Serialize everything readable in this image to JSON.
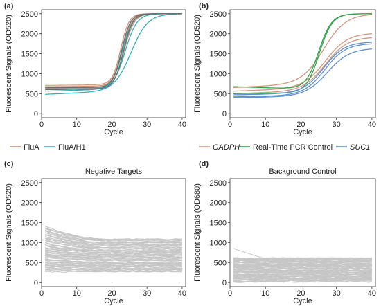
{
  "chart_data": [
    {
      "panel": "(a)",
      "type": "line",
      "title": "",
      "xlabel": "Cycle",
      "ylabel": "Fluorescent Signals (OD520)",
      "xlim": [
        0,
        41
      ],
      "ylim": [
        -100,
        2600
      ],
      "xticks": [
        0,
        10,
        20,
        30,
        40
      ],
      "yticks": [
        0,
        500,
        1000,
        1500,
        2000,
        2500
      ],
      "grid": false,
      "legend_placement": "bottom-left",
      "series": [
        {
          "name": "FluA",
          "color": "#c9917a",
          "plateau": 2500,
          "curves": [
            {
              "base": 740,
              "drift": -40,
              "mid": 22.5,
              "k": 0.85,
              "top": 2500
            },
            {
              "base": 700,
              "drift": -30,
              "mid": 22.8,
              "k": 0.8,
              "top": 2500
            },
            {
              "base": 640,
              "drift": 20,
              "mid": 23.0,
              "k": 0.75,
              "top": 2500
            },
            {
              "base": 620,
              "drift": 30,
              "mid": 23.5,
              "k": 0.7,
              "top": 2500
            }
          ]
        },
        {
          "name": "FluA/H1",
          "color": "#2fb0b8",
          "plateau": 2500,
          "curves": [
            {
              "base": 480,
              "drift": 150,
              "mid": 25.5,
              "k": 0.42,
              "top": 2500
            },
            {
              "base": 560,
              "drift": 100,
              "mid": 23.8,
              "k": 0.6,
              "top": 2500
            },
            {
              "base": 600,
              "drift": 60,
              "mid": 23.0,
              "k": 0.7,
              "top": 2500
            }
          ]
        },
        {
          "name": "",
          "color": "#6b6b6b",
          "plateau": 2500,
          "curves": [
            {
              "base": 650,
              "drift": 20,
              "mid": 22.8,
              "k": 0.8,
              "top": 2500
            },
            {
              "base": 600,
              "drift": 40,
              "mid": 23.3,
              "k": 0.75,
              "top": 2500
            }
          ]
        }
      ]
    },
    {
      "panel": "(b)",
      "type": "line",
      "title": "",
      "xlabel": "Cycle",
      "ylabel": "Fluorescent Signals (OD520)",
      "xlim": [
        0,
        41
      ],
      "ylim": [
        -100,
        2600
      ],
      "xticks": [
        0,
        10,
        20,
        30,
        40
      ],
      "yticks": [
        0,
        500,
        1000,
        1500,
        2000,
        2500
      ],
      "grid": false,
      "legend_placement": "bottom",
      "series": [
        {
          "name": "GADPH",
          "italic": true,
          "color": "#d4957b",
          "curves": [
            {
              "base": 650,
              "drift": 150,
              "mid": 26.5,
              "k": 0.32,
              "top": 2500
            },
            {
              "base": 560,
              "drift": 120,
              "mid": 27.0,
              "k": 0.32,
              "top": 2020
            },
            {
              "base": 500,
              "drift": 100,
              "mid": 27.0,
              "k": 0.32,
              "top": 1920
            }
          ]
        },
        {
          "name": "Real-Time PCR Control",
          "italic": false,
          "color": "#33a14a",
          "plateau": 2500,
          "curves": [
            {
              "base": 680,
              "drift": -120,
              "mid": 25.0,
              "k": 0.55,
              "top": 2500
            },
            {
              "base": 500,
              "drift": 40,
              "mid": 25.2,
              "k": 0.55,
              "top": 2500
            }
          ]
        },
        {
          "name": "SUC1",
          "italic": true,
          "color": "#5b8fd6",
          "curves": [
            {
              "base": 470,
              "drift": 60,
              "mid": 26.5,
              "k": 0.34,
              "top": 1800
            },
            {
              "base": 420,
              "drift": 60,
              "mid": 26.8,
              "k": 0.34,
              "top": 1760
            },
            {
              "base": 400,
              "drift": 50,
              "mid": 27.5,
              "k": 0.32,
              "top": 1640
            }
          ]
        }
      ]
    },
    {
      "panel": "(c)",
      "type": "line",
      "title": "Negative Targets",
      "xlabel": "Cycle",
      "ylabel": "Fluorescent Signals (OD520)",
      "xlim": [
        0,
        41
      ],
      "ylim": [
        -100,
        2600
      ],
      "xticks": [
        0,
        10,
        20,
        30,
        40
      ],
      "yticks": [
        0,
        500,
        1000,
        1500,
        2000,
        2500
      ],
      "grid": false,
      "series": [
        {
          "name": "",
          "color": "#c6c6c6",
          "band": {
            "count": 70,
            "start_min": 280,
            "start_max": 1420,
            "end_min": 260,
            "end_max": 1100,
            "seed": 7
          }
        }
      ]
    },
    {
      "panel": "(d)",
      "type": "line",
      "title": "Background Control",
      "xlabel": "Cycle",
      "ylabel": "Fluorescent Signals (OD680)",
      "xlim": [
        0,
        41
      ],
      "ylim": [
        -100,
        2600
      ],
      "xticks": [
        0,
        10,
        20,
        30,
        40
      ],
      "yticks": [
        0,
        500,
        1000,
        1500,
        2000,
        2500
      ],
      "grid": false,
      "series": [
        {
          "name": "",
          "color": "#c6c6c6",
          "band": {
            "count": 70,
            "start_min": 20,
            "start_max": 630,
            "end_min": 20,
            "end_max": 620,
            "seed": 13
          },
          "outlier": {
            "start": 850,
            "end": 620,
            "settle": 8
          }
        }
      ]
    }
  ]
}
